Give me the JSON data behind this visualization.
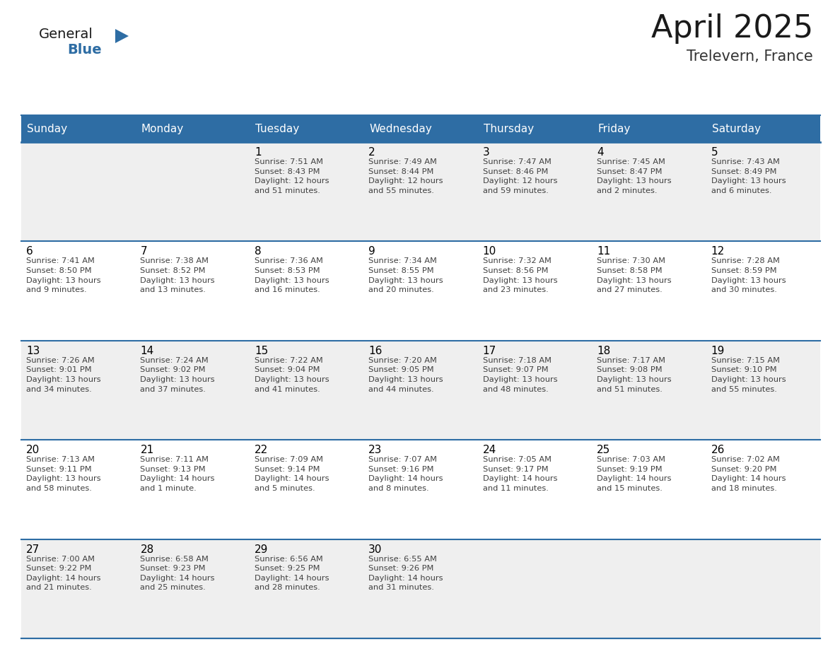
{
  "title": "April 2025",
  "subtitle": "Trelevern, France",
  "header_bg_color": "#2E6DA4",
  "header_text_color": "#FFFFFF",
  "cell_bg_even": "#EFEFEF",
  "cell_bg_odd": "#FFFFFF",
  "grid_line_color": "#2E6DA4",
  "day_number_color": "#000000",
  "day_text_color": "#404040",
  "days_of_week": [
    "Sunday",
    "Monday",
    "Tuesday",
    "Wednesday",
    "Thursday",
    "Friday",
    "Saturday"
  ],
  "weeks": [
    [
      {
        "day": 0,
        "text": ""
      },
      {
        "day": 0,
        "text": ""
      },
      {
        "day": 1,
        "text": "Sunrise: 7:51 AM\nSunset: 8:43 PM\nDaylight: 12 hours\nand 51 minutes."
      },
      {
        "day": 2,
        "text": "Sunrise: 7:49 AM\nSunset: 8:44 PM\nDaylight: 12 hours\nand 55 minutes."
      },
      {
        "day": 3,
        "text": "Sunrise: 7:47 AM\nSunset: 8:46 PM\nDaylight: 12 hours\nand 59 minutes."
      },
      {
        "day": 4,
        "text": "Sunrise: 7:45 AM\nSunset: 8:47 PM\nDaylight: 13 hours\nand 2 minutes."
      },
      {
        "day": 5,
        "text": "Sunrise: 7:43 AM\nSunset: 8:49 PM\nDaylight: 13 hours\nand 6 minutes."
      }
    ],
    [
      {
        "day": 6,
        "text": "Sunrise: 7:41 AM\nSunset: 8:50 PM\nDaylight: 13 hours\nand 9 minutes."
      },
      {
        "day": 7,
        "text": "Sunrise: 7:38 AM\nSunset: 8:52 PM\nDaylight: 13 hours\nand 13 minutes."
      },
      {
        "day": 8,
        "text": "Sunrise: 7:36 AM\nSunset: 8:53 PM\nDaylight: 13 hours\nand 16 minutes."
      },
      {
        "day": 9,
        "text": "Sunrise: 7:34 AM\nSunset: 8:55 PM\nDaylight: 13 hours\nand 20 minutes."
      },
      {
        "day": 10,
        "text": "Sunrise: 7:32 AM\nSunset: 8:56 PM\nDaylight: 13 hours\nand 23 minutes."
      },
      {
        "day": 11,
        "text": "Sunrise: 7:30 AM\nSunset: 8:58 PM\nDaylight: 13 hours\nand 27 minutes."
      },
      {
        "day": 12,
        "text": "Sunrise: 7:28 AM\nSunset: 8:59 PM\nDaylight: 13 hours\nand 30 minutes."
      }
    ],
    [
      {
        "day": 13,
        "text": "Sunrise: 7:26 AM\nSunset: 9:01 PM\nDaylight: 13 hours\nand 34 minutes."
      },
      {
        "day": 14,
        "text": "Sunrise: 7:24 AM\nSunset: 9:02 PM\nDaylight: 13 hours\nand 37 minutes."
      },
      {
        "day": 15,
        "text": "Sunrise: 7:22 AM\nSunset: 9:04 PM\nDaylight: 13 hours\nand 41 minutes."
      },
      {
        "day": 16,
        "text": "Sunrise: 7:20 AM\nSunset: 9:05 PM\nDaylight: 13 hours\nand 44 minutes."
      },
      {
        "day": 17,
        "text": "Sunrise: 7:18 AM\nSunset: 9:07 PM\nDaylight: 13 hours\nand 48 minutes."
      },
      {
        "day": 18,
        "text": "Sunrise: 7:17 AM\nSunset: 9:08 PM\nDaylight: 13 hours\nand 51 minutes."
      },
      {
        "day": 19,
        "text": "Sunrise: 7:15 AM\nSunset: 9:10 PM\nDaylight: 13 hours\nand 55 minutes."
      }
    ],
    [
      {
        "day": 20,
        "text": "Sunrise: 7:13 AM\nSunset: 9:11 PM\nDaylight: 13 hours\nand 58 minutes."
      },
      {
        "day": 21,
        "text": "Sunrise: 7:11 AM\nSunset: 9:13 PM\nDaylight: 14 hours\nand 1 minute."
      },
      {
        "day": 22,
        "text": "Sunrise: 7:09 AM\nSunset: 9:14 PM\nDaylight: 14 hours\nand 5 minutes."
      },
      {
        "day": 23,
        "text": "Sunrise: 7:07 AM\nSunset: 9:16 PM\nDaylight: 14 hours\nand 8 minutes."
      },
      {
        "day": 24,
        "text": "Sunrise: 7:05 AM\nSunset: 9:17 PM\nDaylight: 14 hours\nand 11 minutes."
      },
      {
        "day": 25,
        "text": "Sunrise: 7:03 AM\nSunset: 9:19 PM\nDaylight: 14 hours\nand 15 minutes."
      },
      {
        "day": 26,
        "text": "Sunrise: 7:02 AM\nSunset: 9:20 PM\nDaylight: 14 hours\nand 18 minutes."
      }
    ],
    [
      {
        "day": 27,
        "text": "Sunrise: 7:00 AM\nSunset: 9:22 PM\nDaylight: 14 hours\nand 21 minutes."
      },
      {
        "day": 28,
        "text": "Sunrise: 6:58 AM\nSunset: 9:23 PM\nDaylight: 14 hours\nand 25 minutes."
      },
      {
        "day": 29,
        "text": "Sunrise: 6:56 AM\nSunset: 9:25 PM\nDaylight: 14 hours\nand 28 minutes."
      },
      {
        "day": 30,
        "text": "Sunrise: 6:55 AM\nSunset: 9:26 PM\nDaylight: 14 hours\nand 31 minutes."
      },
      {
        "day": 0,
        "text": ""
      },
      {
        "day": 0,
        "text": ""
      },
      {
        "day": 0,
        "text": ""
      }
    ]
  ],
  "logo_general_color": "#1a1a1a",
  "logo_blue_color": "#2E6DA4",
  "logo_triangle_color": "#2E6DA4",
  "title_color": "#1a1a1a",
  "subtitle_color": "#333333",
  "title_fontsize": 32,
  "subtitle_fontsize": 15,
  "header_fontsize": 11,
  "day_num_fontsize": 11,
  "cell_text_fontsize": 8.2
}
